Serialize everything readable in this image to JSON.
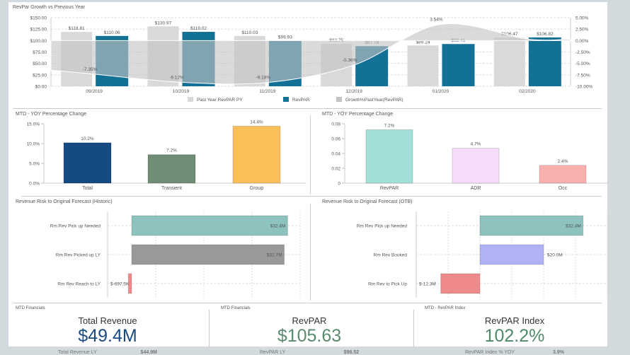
{
  "top_chart": {
    "title": "RevPar Growth vs Previous Year"
  },
  "mid_left": {
    "title": "MTD - YOY Percentage Change"
  },
  "mid_right": {
    "title": "MTD - YOY Percentage Change"
  },
  "risk_left": {
    "title": "Revenue Risk to Original Forecast (Historic)"
  },
  "risk_right": {
    "title": "Revenue Risk to Original Forecast (OTB)"
  },
  "kpis": [
    {
      "section": "MTD Financials",
      "label": "Total Revenue",
      "value": "$49.4M",
      "sub_label": "Total Revenue LY",
      "sub_value": "$44.9M",
      "color": "#1b4a80"
    },
    {
      "section": "MTD Financials",
      "label": "RevPAR",
      "value": "$105.63",
      "sub_label": "RevPAR LY",
      "sub_value": "$98.52",
      "color": "#5a8a6e"
    },
    {
      "section": "MTD - RevPAR Index",
      "label": "RevPAR Index",
      "value": "102.2%",
      "sub_label": "RevPAR Index % YOY",
      "sub_value": "3.9%",
      "color": "#4e8a6a"
    }
  ],
  "chart_data": [
    {
      "type": "bar",
      "title": "RevPar Growth vs Previous Year",
      "categories": [
        "09/2019",
        "10/2019",
        "11/2019",
        "12/2019",
        "01/2020",
        "02/2020"
      ],
      "ylim": [
        0,
        150
      ],
      "y_ticks": [
        "$0.00",
        "$25.00",
        "$50.00",
        "$75.00",
        "$100.00",
        "$125.00",
        "$150.00"
      ],
      "y2lim": [
        -10,
        5
      ],
      "y2_ticks": [
        "-10.00%",
        "-7.50%",
        "-5.00%",
        "-2.50%",
        "0.00%",
        "2.50%",
        "5.00%"
      ],
      "legend": "bottom",
      "grid": true,
      "series": [
        {
          "name": "Past Year RevPAR PY",
          "type": "bar",
          "color": "#d9d9d9",
          "values": [
            118.81,
            130.97,
            110.03,
            92.75,
            89.24,
            106.47
          ],
          "labels": [
            "$118.81",
            "$130.97",
            "$110.03",
            "$92.75",
            "$89.24",
            "$106.47"
          ]
        },
        {
          "name": "RevPAR",
          "type": "bar",
          "color": "#137196",
          "values": [
            110.06,
            119.02,
            99.93,
            87.78,
            92.41,
            106.82
          ],
          "labels": [
            "$110.06",
            "$119.02",
            "$99.93",
            "$87.78",
            "$92.41",
            "$106.82"
          ]
        },
        {
          "name": "Growth%PastYear(RevPAR)",
          "type": "area",
          "axis": "right",
          "color": "#c4c4c4",
          "values": [
            -7.35,
            -9.12,
            -9.18,
            -5.36,
            3.54,
            0.33
          ],
          "labels": [
            "-7.35%",
            "-9.12%",
            "-9.18%",
            "-5.36%",
            "3.54%",
            ""
          ]
        }
      ]
    },
    {
      "type": "bar",
      "title": "MTD - YOY Percentage Change",
      "categories": [
        "Total",
        "Transient",
        "Group"
      ],
      "values": [
        10.2,
        7.2,
        14.4
      ],
      "labels": [
        "10.2%",
        "7.2%",
        "14.4%"
      ],
      "colors": [
        "#164a82",
        "#6f8c75",
        "#fbbf5a"
      ],
      "ylim": [
        0,
        15
      ],
      "y_ticks": [
        "0.0%",
        "5.0%",
        "10.0%",
        "15.0%"
      ]
    },
    {
      "type": "bar",
      "title": "MTD - YOY Percentage Change",
      "categories": [
        "RevPAR",
        "ADR",
        "Occ"
      ],
      "values": [
        0.072,
        0.047,
        0.024
      ],
      "labels": [
        "7.2%",
        "4.7%",
        "2.4%"
      ],
      "colors": [
        "#a3dfd9",
        "#f7dcfa",
        "#fbb0b0"
      ],
      "ylim": [
        0,
        0.08
      ],
      "y_ticks": [
        "0",
        "0.02",
        "0.04",
        "0.06",
        "0.08"
      ]
    },
    {
      "type": "bar",
      "orientation": "horizontal",
      "title": "Revenue Risk to Original Forecast (Historic)",
      "categories": [
        "Rm Rev Pick up Needed",
        "Rm Rev Picked up LY",
        "Rm Rev Reach to LY"
      ],
      "values": [
        32.4,
        31.7,
        -0.6975
      ],
      "labels": [
        "$32.4M",
        "$31.7M",
        "$-697.5K"
      ],
      "colors": [
        "#8dc2bf",
        "#999999",
        "#f08a8a"
      ],
      "xlim": [
        -5,
        35
      ],
      "grid": true
    },
    {
      "type": "bar",
      "orientation": "horizontal",
      "title": "Revenue Risk to Original Forecast (OTB)",
      "categories": [
        "Rm Rev Pick up Needed",
        "Rm Rev Booked",
        "Rm Rev to Pick Up"
      ],
      "values": [
        32.4,
        20.0,
        -12.3
      ],
      "labels": [
        "$32.4M",
        "$20.0M",
        "$-12.3M"
      ],
      "colors": [
        "#8dc2bf",
        "#b0b2f6",
        "#ef8a8c"
      ],
      "xlim": [
        -20,
        40
      ],
      "grid": true
    }
  ]
}
